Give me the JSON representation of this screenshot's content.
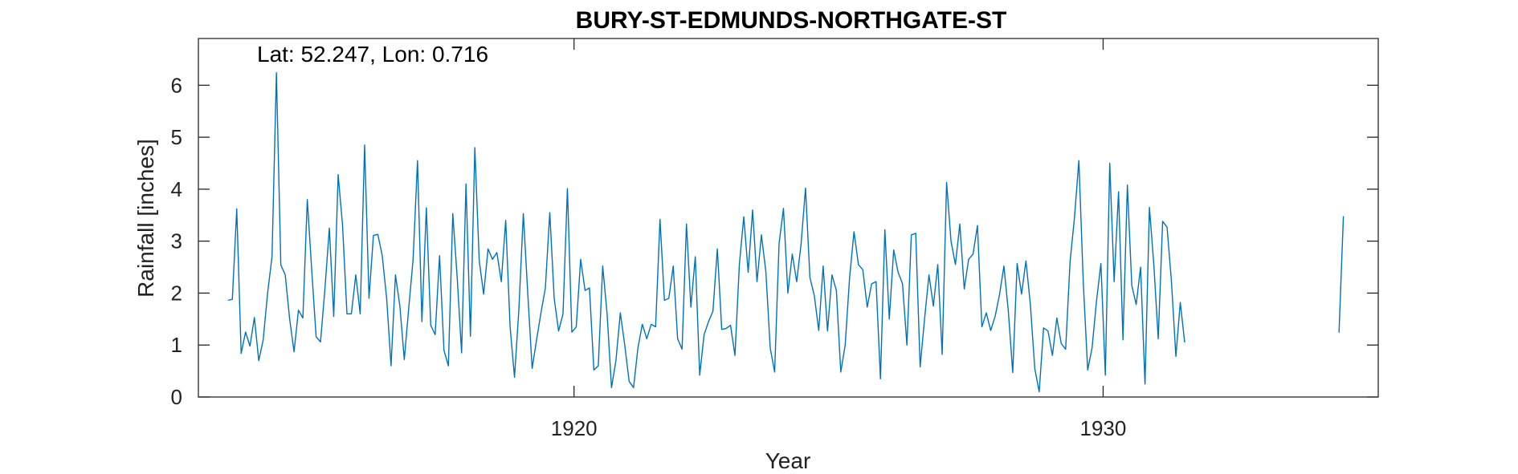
{
  "chart_data": {
    "type": "line",
    "title": "BURY-ST-EDMUNDS-NORTHGATE-ST",
    "annotation": "Lat: 52.247, Lon: 0.716",
    "xlabel": "Year",
    "ylabel": "Rainfall [inches]",
    "xlim": [
      1912.9,
      1935.2
    ],
    "ylim": [
      0,
      6.9
    ],
    "xticks": [
      1920,
      1930
    ],
    "xtick_labels": [
      "1920",
      "1930"
    ],
    "yticks": [
      0,
      1,
      2,
      3,
      4,
      5,
      6
    ],
    "ytick_labels": [
      "0",
      "1",
      "2",
      "3",
      "4",
      "5",
      "6"
    ],
    "grid": false,
    "series": [
      {
        "color": "#0072BD",
        "segments": [
          {
            "start_year": 1913.4583,
            "values": [
              1.86,
              1.88,
              3.62,
              0.84,
              1.25,
              0.98,
              1.53,
              0.7,
              1.1,
              2.0,
              2.7,
              6.24,
              2.54,
              2.35,
              1.5,
              0.87,
              1.67,
              1.52,
              3.8,
              2.45,
              1.16,
              1.06,
              2.08,
              3.25,
              1.55,
              4.28,
              3.3,
              1.6,
              1.6,
              2.35,
              1.6,
              4.85,
              1.9,
              3.11,
              3.13,
              2.72,
              1.9,
              0.6,
              2.35,
              1.75,
              0.72,
              1.7,
              2.65,
              4.55,
              1.45,
              3.64,
              1.38,
              1.2,
              2.72,
              0.9,
              0.6,
              3.53,
              2.3,
              0.85,
              4.1,
              1.17,
              4.8,
              2.62,
              1.98,
              2.85,
              2.65,
              2.78,
              2.22,
              3.4,
              1.35,
              0.38,
              1.7,
              3.53,
              2.0,
              0.55,
              1.1,
              1.62,
              2.1,
              3.55,
              1.9,
              1.27,
              1.6,
              4.01,
              1.25,
              1.35,
              2.65,
              2.05,
              2.1,
              0.52,
              0.6,
              2.52,
              1.6,
              0.18,
              0.7,
              1.62,
              1.0,
              0.3,
              0.18,
              0.95,
              1.4,
              1.12,
              1.4,
              1.35,
              3.42,
              1.86,
              1.9,
              2.52,
              1.12,
              0.92,
              3.33,
              1.73,
              2.7,
              0.42,
              1.2,
              1.45,
              1.65,
              2.85,
              1.3,
              1.32,
              1.38,
              0.8,
              2.55,
              3.47,
              2.4,
              3.6,
              2.22,
              3.12,
              2.42,
              0.94,
              0.48,
              2.95,
              3.63,
              2.0,
              2.75,
              2.22,
              2.95,
              4.02,
              2.3,
              1.95,
              1.28,
              2.52,
              1.27,
              2.35,
              2.05,
              0.48,
              1.0,
              2.3,
              3.18,
              2.55,
              2.45,
              1.73,
              2.18,
              2.22,
              0.35,
              3.22,
              1.5,
              2.83,
              2.4,
              2.18,
              1.0,
              3.12,
              3.15,
              0.58,
              1.5,
              2.35,
              1.75,
              2.55,
              0.82,
              4.13,
              3.0,
              2.55,
              3.33,
              2.08,
              2.65,
              2.75,
              3.3,
              1.35,
              1.62,
              1.28,
              1.55,
              1.97,
              2.52,
              1.65,
              0.47,
              2.57,
              1.98,
              2.62,
              1.78,
              0.55,
              0.1,
              1.33,
              1.27,
              0.8,
              1.52,
              1.03,
              0.92,
              2.6,
              3.45,
              4.55,
              2.2,
              0.52,
              0.95,
              1.85,
              2.57,
              0.42,
              4.5,
              2.22,
              3.95,
              1.1,
              4.08,
              2.15,
              1.78,
              2.5,
              0.25,
              3.65,
              2.55,
              1.12,
              3.38,
              3.27,
              2.22,
              0.78,
              1.82,
              1.05
            ]
          },
          {
            "start_year": 1934.4583,
            "values": [
              1.24,
              3.48
            ]
          }
        ]
      }
    ]
  }
}
